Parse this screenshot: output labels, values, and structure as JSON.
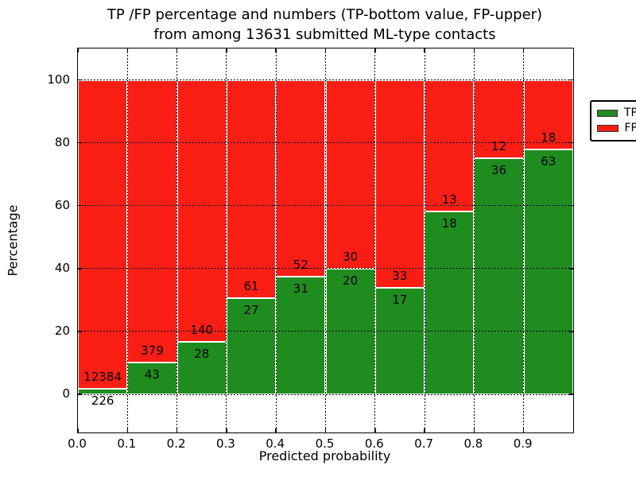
{
  "title": {
    "line1": "TP /FP percentage and numbers (TP-bottom value, FP-upper)",
    "line2": "from among 13631 submitted ML-type contacts"
  },
  "axes": {
    "xlabel": "Predicted probability",
    "ylabel": "Percentage",
    "x_tick_labels": [
      "0.0",
      "0.1",
      "0.2",
      "0.3",
      "0.4",
      "0.5",
      "0.6",
      "0.7",
      "0.8",
      "0.9"
    ],
    "x_tick_values": [
      0.0,
      0.1,
      0.2,
      0.3,
      0.4,
      0.5,
      0.6,
      0.7,
      0.8,
      0.9
    ],
    "y_tick_labels": [
      "0",
      "20",
      "40",
      "60",
      "80",
      "100"
    ],
    "y_tick_values": [
      0,
      20,
      40,
      60,
      80,
      100
    ]
  },
  "legend": {
    "items": [
      {
        "label": "TP",
        "color": "#1f8c1f"
      },
      {
        "label": "FP",
        "color": "#fb1e14"
      }
    ]
  },
  "colors": {
    "tp_green": "#1f8c1f",
    "fp_red": "#fb1e14",
    "grid": "#000000",
    "bar_edge": "#ffffff",
    "text": "#000000"
  },
  "chart_data": {
    "type": "bar",
    "stacked": true,
    "normalized_to_percent": true,
    "title": "TP /FP percentage and numbers (TP-bottom value, FP-upper) from among 13631 submitted ML-type contacts",
    "xlabel": "Predicted probability",
    "ylabel": "Percentage",
    "xlim": [
      0.0,
      1.0
    ],
    "ylim": [
      -12,
      110
    ],
    "bin_width": 0.1,
    "grid": true,
    "legend_position": "upper right",
    "categories": [
      "0.0",
      "0.1",
      "0.2",
      "0.3",
      "0.4",
      "0.5",
      "0.6",
      "0.7",
      "0.8",
      "0.9"
    ],
    "series": [
      {
        "name": "TP",
        "color": "#1f8c1f",
        "counts": [
          226,
          43,
          28,
          27,
          31,
          20,
          17,
          18,
          36,
          63
        ]
      },
      {
        "name": "FP",
        "color": "#fb1e14",
        "counts": [
          12384,
          379,
          140,
          61,
          52,
          30,
          33,
          13,
          12,
          18
        ]
      }
    ],
    "total_contacts": 13631
  }
}
